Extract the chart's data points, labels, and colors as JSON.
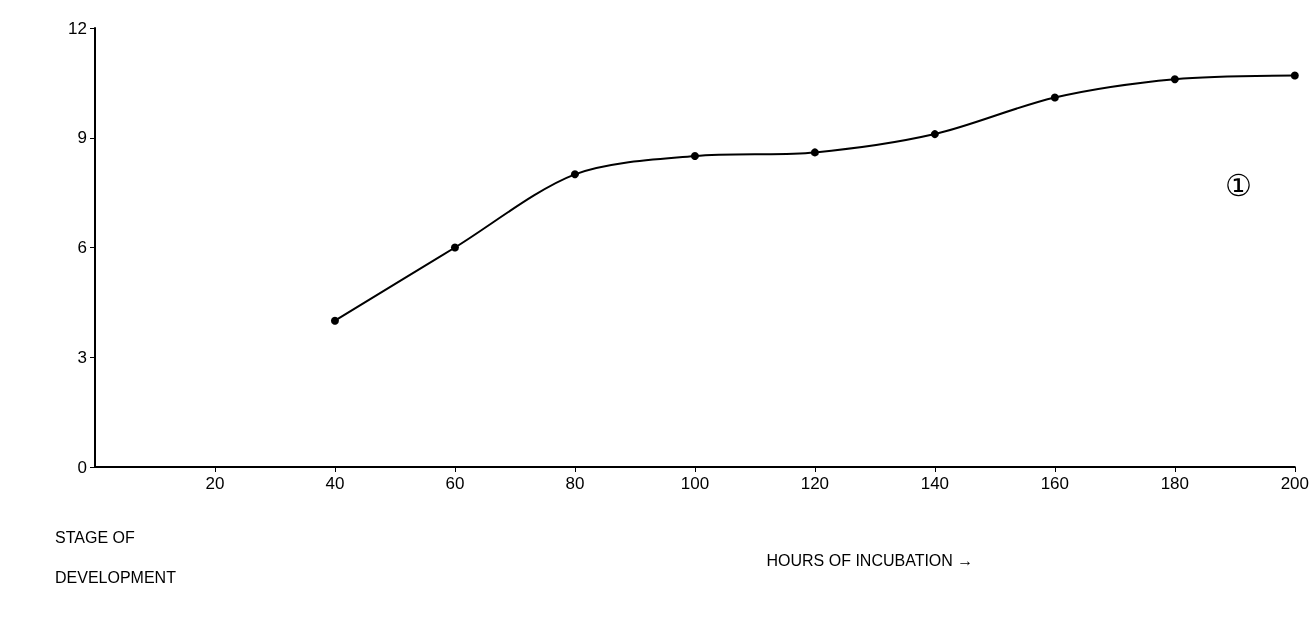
{
  "chart_data": {
    "type": "line",
    "xlabel": "HOURS OF INCUBATION →",
    "ylabel": "STAGE OF\nDEVELOPMENT",
    "annotations": [
      "①"
    ],
    "x": [
      40,
      60,
      80,
      100,
      120,
      140,
      160,
      180,
      200
    ],
    "series": [
      {
        "color": "#000000",
        "values": [
          4,
          6,
          8,
          8.5,
          8.6,
          9.1,
          10.1,
          10.6,
          10.7
        ]
      }
    ],
    "xlim": [
      0,
      200
    ],
    "xticks": [
      20,
      40,
      60,
      80,
      100,
      120,
      140,
      160,
      180,
      200
    ],
    "ylim": [
      0,
      12
    ],
    "yticks": [
      0,
      3,
      6,
      9,
      12
    ],
    "grid": false,
    "marker": "circle",
    "line_style": "solid"
  }
}
